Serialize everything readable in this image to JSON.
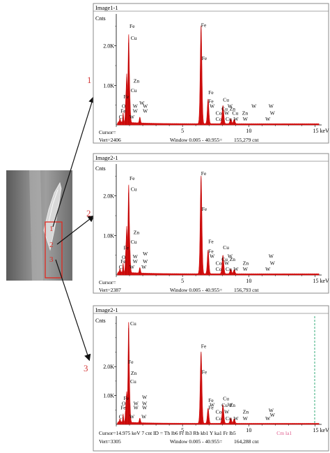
{
  "colors": {
    "spectrum": "#d31010",
    "pointer": "#d43a3a",
    "frame": "#8a8a8a",
    "cursor_line": "#1fa36b"
  },
  "sem_image": {
    "icon": "sem-micrograph",
    "point_labels": [
      "1",
      "2",
      "3"
    ]
  },
  "pointer_labels": [
    "1",
    "2",
    "3"
  ],
  "chart_data": [
    {
      "type": "line",
      "title": "Image1-1",
      "ylabel": "Cnts",
      "xlabel": "",
      "xlim": [
        0,
        15.5
      ],
      "ylim": [
        0,
        2700
      ],
      "x_ticks": [
        5,
        10,
        15
      ],
      "x_tick_labels": [
        "5",
        "10",
        "15 keV"
      ],
      "y_ticks": [
        1000,
        2000
      ],
      "y_tick_labels": [
        "1.0K",
        "2.0K"
      ],
      "grid": false,
      "background": 30,
      "peaks": [
        {
          "x": 0.28,
          "y": 95,
          "w": 0.03
        },
        {
          "x": 0.52,
          "y": 240,
          "w": 0.03
        },
        {
          "x": 0.71,
          "y": 420,
          "w": 0.035
        },
        {
          "x": 0.79,
          "y": 1180,
          "w": 0.04
        },
        {
          "x": 0.93,
          "y": 2050,
          "w": 0.045
        },
        {
          "x": 1.01,
          "y": 620,
          "w": 0.05
        },
        {
          "x": 1.78,
          "y": 150,
          "w": 0.045
        },
        {
          "x": 6.4,
          "y": 2480,
          "w": 0.065
        },
        {
          "x": 6.93,
          "y": 620,
          "w": 0.06
        },
        {
          "x": 8.05,
          "y": 460,
          "w": 0.065
        },
        {
          "x": 8.64,
          "y": 130,
          "w": 0.06
        },
        {
          "x": 8.9,
          "y": 110,
          "w": 0.06
        }
      ],
      "element_labels": [
        {
          "text": "Fe",
          "x": 1.0,
          "y": 2450
        },
        {
          "text": "Cu",
          "x": 1.1,
          "y": 2150
        },
        {
          "text": "Zn",
          "x": 1.3,
          "y": 1070
        },
        {
          "text": "Cu",
          "x": 1.1,
          "y": 830
        },
        {
          "text": "Fe",
          "x": 0.55,
          "y": 670
        },
        {
          "text": "W",
          "x": 1.75,
          "y": 510
        },
        {
          "text": "O",
          "x": 0.42,
          "y": 430
        },
        {
          "text": "W",
          "x": 1.25,
          "y": 430
        },
        {
          "text": "W",
          "x": 2.0,
          "y": 430
        },
        {
          "text": "Fe",
          "x": 0.32,
          "y": 310
        },
        {
          "text": "W",
          "x": 1.25,
          "y": 310
        },
        {
          "text": "W",
          "x": 2.0,
          "y": 310
        },
        {
          "text": "C",
          "x": 0.2,
          "y": 160
        },
        {
          "text": "W",
          "x": 1.0,
          "y": 160
        },
        {
          "text": "Fe",
          "x": 6.4,
          "y": 2480
        },
        {
          "text": "Fe",
          "x": 6.45,
          "y": 1640
        },
        {
          "text": "Fe",
          "x": 6.95,
          "y": 780
        },
        {
          "text": "Fe",
          "x": 6.95,
          "y": 560
        },
        {
          "text": "Cu",
          "x": 8.05,
          "y": 590
        },
        {
          "text": "Cu",
          "x": 7.95,
          "y": 360
        },
        {
          "text": "Zn",
          "x": 8.55,
          "y": 360
        },
        {
          "text": "W",
          "x": 7.05,
          "y": 430
        },
        {
          "text": "W",
          "x": 8.4,
          "y": 430
        },
        {
          "text": "W",
          "x": 10.2,
          "y": 430
        },
        {
          "text": "W",
          "x": 11.5,
          "y": 430
        },
        {
          "text": "Co",
          "x": 7.5,
          "y": 260
        },
        {
          "text": "W",
          "x": 8.15,
          "y": 260
        },
        {
          "text": "Cu",
          "x": 8.75,
          "y": 260
        },
        {
          "text": "Zn",
          "x": 9.5,
          "y": 260
        },
        {
          "text": "W",
          "x": 11.6,
          "y": 260
        },
        {
          "text": "Co",
          "x": 7.5,
          "y": 110
        },
        {
          "text": "Cu",
          "x": 8.25,
          "y": 110
        },
        {
          "text": "W",
          "x": 8.85,
          "y": 110
        },
        {
          "text": "W",
          "x": 9.55,
          "y": 110
        },
        {
          "text": "W",
          "x": 11.25,
          "y": 110
        }
      ],
      "cursor_x": null,
      "footer": {
        "cursor": "Cursor=",
        "vert": "Vert=2406",
        "window": "Window 0.005 - 40.955=",
        "counts": "155,279 cnt",
        "extra": "",
        "extra_highlight": ""
      }
    },
    {
      "type": "line",
      "title": "Image2-1",
      "ylabel": "Cnts",
      "xlabel": "",
      "xlim": [
        0,
        15.5
      ],
      "ylim": [
        0,
        2700
      ],
      "x_ticks": [
        5,
        10,
        15
      ],
      "x_tick_labels": [
        "5",
        "10",
        "15 keV"
      ],
      "y_ticks": [
        1000,
        2000
      ],
      "y_tick_labels": [
        "1.0K",
        "2.0K"
      ],
      "grid": false,
      "background": 30,
      "peaks": [
        {
          "x": 0.28,
          "y": 90,
          "w": 0.03
        },
        {
          "x": 0.52,
          "y": 230,
          "w": 0.03
        },
        {
          "x": 0.71,
          "y": 400,
          "w": 0.035
        },
        {
          "x": 0.79,
          "y": 1120,
          "w": 0.04
        },
        {
          "x": 0.93,
          "y": 2050,
          "w": 0.045
        },
        {
          "x": 1.01,
          "y": 600,
          "w": 0.05
        },
        {
          "x": 1.78,
          "y": 140,
          "w": 0.045
        },
        {
          "x": 6.4,
          "y": 2480,
          "w": 0.065
        },
        {
          "x": 6.93,
          "y": 600,
          "w": 0.06
        },
        {
          "x": 8.05,
          "y": 470,
          "w": 0.065
        },
        {
          "x": 8.64,
          "y": 125,
          "w": 0.06
        },
        {
          "x": 8.9,
          "y": 105,
          "w": 0.06
        }
      ],
      "element_labels": [
        {
          "text": "Fe",
          "x": 1.0,
          "y": 2400
        },
        {
          "text": "Cu",
          "x": 1.1,
          "y": 2130
        },
        {
          "text": "Zn",
          "x": 1.3,
          "y": 1030
        },
        {
          "text": "Cu",
          "x": 1.1,
          "y": 790
        },
        {
          "text": "Fe",
          "x": 0.55,
          "y": 640
        },
        {
          "text": "O",
          "x": 0.42,
          "y": 410
        },
        {
          "text": "W",
          "x": 1.25,
          "y": 420
        },
        {
          "text": "W",
          "x": 2.0,
          "y": 490
        },
        {
          "text": "Fe",
          "x": 0.32,
          "y": 300
        },
        {
          "text": "W",
          "x": 1.25,
          "y": 300
        },
        {
          "text": "W",
          "x": 2.0,
          "y": 300
        },
        {
          "text": "C",
          "x": 0.2,
          "y": 160
        },
        {
          "text": "W",
          "x": 1.0,
          "y": 160
        },
        {
          "text": "W",
          "x": 1.9,
          "y": 160
        },
        {
          "text": "Fe",
          "x": 6.4,
          "y": 2520
        },
        {
          "text": "Fe",
          "x": 6.45,
          "y": 1620
        },
        {
          "text": "Fe",
          "x": 6.95,
          "y": 800
        },
        {
          "text": "Fe",
          "x": 6.95,
          "y": 560
        },
        {
          "text": "Cu",
          "x": 8.05,
          "y": 650
        },
        {
          "text": "Cu",
          "x": 7.95,
          "y": 350
        },
        {
          "text": "Zn",
          "x": 8.55,
          "y": 350
        },
        {
          "text": "W",
          "x": 7.05,
          "y": 430
        },
        {
          "text": "W",
          "x": 8.4,
          "y": 430
        },
        {
          "text": "W",
          "x": 11.5,
          "y": 430
        },
        {
          "text": "Co",
          "x": 7.5,
          "y": 260
        },
        {
          "text": "W",
          "x": 8.15,
          "y": 260
        },
        {
          "text": "Zn",
          "x": 9.55,
          "y": 260
        },
        {
          "text": "W",
          "x": 11.6,
          "y": 260
        },
        {
          "text": "Co",
          "x": 7.5,
          "y": 110
        },
        {
          "text": "Cu",
          "x": 8.25,
          "y": 110
        },
        {
          "text": "W",
          "x": 8.85,
          "y": 110
        },
        {
          "text": "W",
          "x": 9.55,
          "y": 110
        },
        {
          "text": "W",
          "x": 11.25,
          "y": 110
        }
      ],
      "cursor_x": null,
      "footer": {
        "cursor": "Cursor=",
        "vert": "Vert=2387",
        "window": "Window 0.005 - 40.955=",
        "counts": "156,793 cnt",
        "extra": "",
        "extra_highlight": ""
      }
    },
    {
      "type": "line",
      "title": "Image2-1",
      "ylabel": "Cnts",
      "xlabel": "",
      "xlim": [
        0,
        15.5
      ],
      "ylim": [
        0,
        3600
      ],
      "x_ticks": [
        5,
        10,
        15
      ],
      "x_tick_labels": [
        "5",
        "10",
        "15 keV"
      ],
      "y_ticks": [
        1000,
        2000
      ],
      "y_tick_labels": [
        "1.0K",
        "2.0K"
      ],
      "grid": false,
      "background": 35,
      "peaks": [
        {
          "x": 0.28,
          "y": 110,
          "w": 0.03
        },
        {
          "x": 0.52,
          "y": 280,
          "w": 0.03
        },
        {
          "x": 0.71,
          "y": 430,
          "w": 0.035
        },
        {
          "x": 0.79,
          "y": 1000,
          "w": 0.04
        },
        {
          "x": 0.93,
          "y": 3300,
          "w": 0.045
        },
        {
          "x": 1.01,
          "y": 700,
          "w": 0.05
        },
        {
          "x": 1.78,
          "y": 160,
          "w": 0.045
        },
        {
          "x": 6.4,
          "y": 2480,
          "w": 0.065
        },
        {
          "x": 6.93,
          "y": 520,
          "w": 0.06
        },
        {
          "x": 8.05,
          "y": 640,
          "w": 0.065
        },
        {
          "x": 8.64,
          "y": 190,
          "w": 0.06
        },
        {
          "x": 8.9,
          "y": 160,
          "w": 0.06
        }
      ],
      "element_labels": [
        {
          "text": "Cu",
          "x": 1.05,
          "y": 3430
        },
        {
          "text": "Fe",
          "x": 0.9,
          "y": 2100
        },
        {
          "text": "Zn",
          "x": 1.1,
          "y": 1720
        },
        {
          "text": "Cu",
          "x": 1.05,
          "y": 1420
        },
        {
          "text": "Fe",
          "x": 0.55,
          "y": 850
        },
        {
          "text": "W",
          "x": 1.95,
          "y": 880
        },
        {
          "text": "O",
          "x": 0.42,
          "y": 660
        },
        {
          "text": "W",
          "x": 1.3,
          "y": 660
        },
        {
          "text": "W",
          "x": 1.95,
          "y": 660
        },
        {
          "text": "Fe",
          "x": 0.32,
          "y": 520
        },
        {
          "text": "W",
          "x": 1.3,
          "y": 520
        },
        {
          "text": "W",
          "x": 1.95,
          "y": 520
        },
        {
          "text": "C",
          "x": 0.2,
          "y": 200
        },
        {
          "text": "W",
          "x": 1.0,
          "y": 200
        },
        {
          "text": "W",
          "x": 1.9,
          "y": 200
        },
        {
          "text": "Fe",
          "x": 6.4,
          "y": 2650
        },
        {
          "text": "Fe",
          "x": 6.45,
          "y": 1750
        },
        {
          "text": "Fe",
          "x": 6.95,
          "y": 770
        },
        {
          "text": "Fe",
          "x": 6.95,
          "y": 520
        },
        {
          "text": "Cu",
          "x": 8.05,
          "y": 830
        },
        {
          "text": "Cu",
          "x": 7.95,
          "y": 600
        },
        {
          "text": "Zn",
          "x": 8.55,
          "y": 600
        },
        {
          "text": "W",
          "x": 7.05,
          "y": 620
        },
        {
          "text": "W",
          "x": 8.4,
          "y": 620
        },
        {
          "text": "W",
          "x": 11.5,
          "y": 420
        },
        {
          "text": "Co",
          "x": 7.5,
          "y": 370
        },
        {
          "text": "W",
          "x": 8.15,
          "y": 370
        },
        {
          "text": "Zn",
          "x": 9.55,
          "y": 370
        },
        {
          "text": "W",
          "x": 11.6,
          "y": 270
        },
        {
          "text": "Co",
          "x": 7.5,
          "y": 150
        },
        {
          "text": "Cu",
          "x": 8.25,
          "y": 150
        },
        {
          "text": "W",
          "x": 8.85,
          "y": 150
        },
        {
          "text": "W",
          "x": 9.55,
          "y": 150
        },
        {
          "text": "W",
          "x": 11.25,
          "y": 150
        }
      ],
      "cursor_x": 14.975,
      "footer": {
        "cursor": "Cursor=14.975 keV   7 cnt  ID = Th lb6  Fr lb3  Rb kb1  Y ka1  Fr lb5",
        "vert": "Vert=3305",
        "window": "Window 0.005 - 40.955=",
        "counts": "164,288 cnt",
        "extra": "",
        "extra_highlight": "Cm la1"
      }
    }
  ]
}
